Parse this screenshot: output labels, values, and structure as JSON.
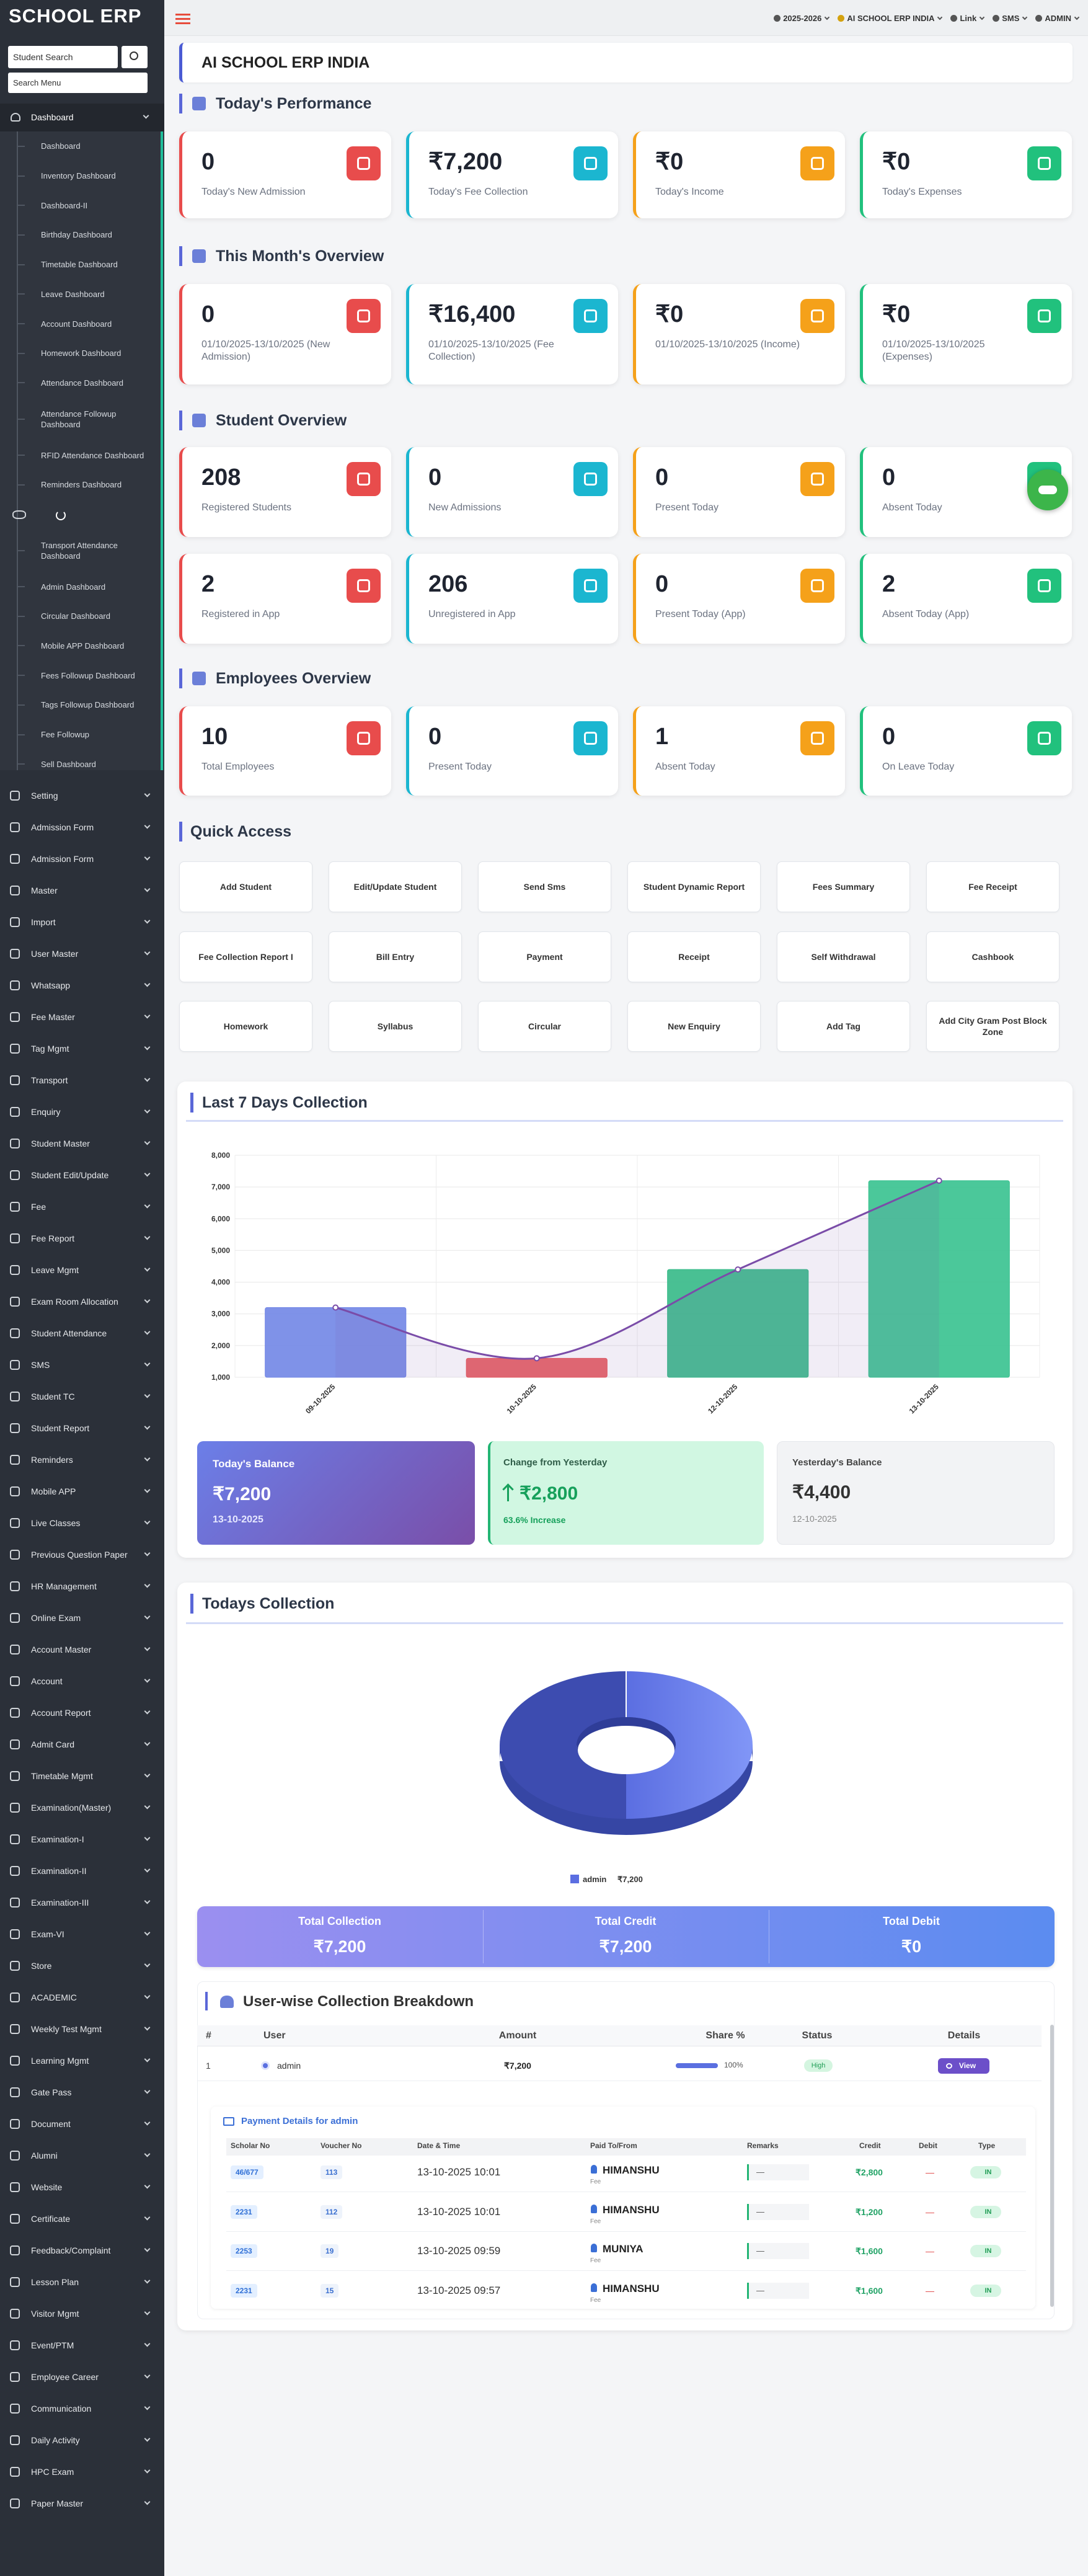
{
  "sidebar": {
    "logo": "SCHOOL ERP",
    "student_search": "Student Search",
    "search_menu": "Search Menu",
    "dashboard": "Dashboard",
    "dashboard_items": [
      "Dashboard",
      "Inventory Dashboard",
      "Dashboard-II",
      "Birthday Dashboard",
      "Timetable Dashboard",
      "Leave Dashboard",
      "Account Dashboard",
      "Homework Dashboard",
      "Attendance Dashboard",
      "Attendance Followup Dashboard",
      "RFID Attendance Dashboard",
      "Reminders Dashboard",
      "Transport Attendance Dashboard",
      "Admin Dashboard",
      "Circular Dashboard",
      "Mobile APP Dashboard",
      "Fees Followup Dashboard",
      "Tags Followup Dashboard",
      "Fee Followup",
      "Sell Dashboard"
    ],
    "menu": [
      "Setting",
      "Admission Form",
      "Admission Form",
      "Master",
      "Import",
      "User Master",
      "Whatsapp",
      "Fee Master",
      "Tag Mgmt",
      "Transport",
      "Enquiry",
      "Student Master",
      "Student Edit/Update",
      "Fee",
      "Fee Report",
      "Leave Mgmt",
      "Exam Room Allocation",
      "Student Attendance",
      "SMS",
      "Student TC",
      "Student Report",
      "Reminders",
      "Mobile APP",
      "Live Classes",
      "Previous Question Paper",
      "HR Management",
      "Online Exam",
      "Account Master",
      "Account",
      "Account Report",
      "Admit Card",
      "Timetable Mgmt",
      "Examination(Master)",
      "Examination-I",
      "Examination-II",
      "Examination-III",
      "Exam-VI",
      "Store",
      "ACADEMIC",
      "Weekly Test Mgmt",
      "Learning Mgmt",
      "Gate Pass",
      "Document",
      "Alumni",
      "Website",
      "Certificate",
      "Feedback/Complaint",
      "Lesson Plan",
      "Visitor Mgmt",
      "Event/PTM",
      "Employee Career",
      "Communication",
      "Daily Activity",
      "HPC Exam",
      "Paper Master"
    ]
  },
  "topbar": {
    "session": "2025-2026",
    "school": "AI SCHOOL ERP INDIA",
    "link": "Link",
    "sms": "SMS",
    "user": "ADMIN"
  },
  "header": {
    "title": "AI SCHOOL ERP INDIA"
  },
  "sections": [
    {
      "title": "Today's Performance",
      "cards": [
        {
          "value": "0",
          "label": "Today's New Admission"
        },
        {
          "value": "₹7,200",
          "label": "Today's Fee Collection"
        },
        {
          "value": "₹0",
          "label": "Today's Income"
        },
        {
          "value": "₹0",
          "label": "Today's Expenses"
        }
      ]
    },
    {
      "title": "This Month's Overview",
      "cards": [
        {
          "value": "0",
          "label": "01/10/2025-13/10/2025 (New Admission)"
        },
        {
          "value": "₹16,400",
          "label": "01/10/2025-13/10/2025 (Fee Collection)"
        },
        {
          "value": "₹0",
          "label": "01/10/2025-13/10/2025 (Income)"
        },
        {
          "value": "₹0",
          "label": "01/10/2025-13/10/2025 (Expenses)"
        }
      ]
    },
    {
      "title": "Student Overview",
      "cards": [
        {
          "value": "208",
          "label": "Registered Students"
        },
        {
          "value": "0",
          "label": "New Admissions"
        },
        {
          "value": "0",
          "label": "Present Today"
        },
        {
          "value": "0",
          "label": "Absent Today"
        },
        {
          "value": "2",
          "label": "Registered in App"
        },
        {
          "value": "206",
          "label": "Unregistered in App"
        },
        {
          "value": "0",
          "label": "Present Today (App)"
        },
        {
          "value": "2",
          "label": "Absent Today (App)"
        }
      ]
    },
    {
      "title": "Employees Overview",
      "cards": [
        {
          "value": "10",
          "label": "Total Employees"
        },
        {
          "value": "0",
          "label": "Present Today"
        },
        {
          "value": "1",
          "label": "Absent Today"
        },
        {
          "value": "0",
          "label": "On Leave Today"
        }
      ]
    }
  ],
  "quick_access": {
    "title": "Quick Access",
    "buttons": [
      "Add Student",
      "Edit/Update Student",
      "Send Sms",
      "Student Dynamic Report",
      "Fees Summary",
      "Fee Receipt",
      "Fee Collection Report I",
      "Bill Entry",
      "Payment",
      "Receipt",
      "Self Withdrawal",
      "Cashbook",
      "Homework",
      "Syllabus",
      "Circular",
      "New Enquiry",
      "Add Tag",
      "Add City Gram Post Block Zone"
    ]
  },
  "chart_data": [
    {
      "type": "bar",
      "title": "Last 7 Days Collection",
      "categories": [
        "09-10-2025",
        "10-10-2025",
        "12-10-2025",
        "13-10-2025"
      ],
      "values": [
        3200,
        1600,
        4400,
        7200
      ],
      "colors": [
        "#7186e6",
        "#e8595d",
        "#35b987",
        "#37c28f"
      ],
      "line_color": "#7a4ca8",
      "ylim": [
        1000,
        8000
      ],
      "yticks": [
        {
          "value": 1000,
          "label": "1,000"
        },
        {
          "value": 2000,
          "label": "2,000"
        },
        {
          "value": 3000,
          "label": "3,000"
        },
        {
          "value": 4000,
          "label": "4,000"
        },
        {
          "value": 5000,
          "label": "5,000"
        },
        {
          "value": 6000,
          "label": "6,000"
        },
        {
          "value": 7000,
          "label": "7,000"
        },
        {
          "value": 8000,
          "label": "8,000"
        }
      ],
      "grid": true
    },
    {
      "type": "pie",
      "title": "Todays Collection",
      "categories": [
        "admin"
      ],
      "values": [
        7200
      ],
      "value_labels": [
        "₹7,200"
      ],
      "colors": [
        "#5b6ee1"
      ]
    }
  ],
  "balance": {
    "today": {
      "label": "Today's Balance",
      "value": "₹7,200",
      "date": "13-10-2025"
    },
    "change": {
      "label": "Change from Yesterday",
      "value": "₹2,800",
      "note": "63.6% Increase"
    },
    "yesterday": {
      "label": "Yesterday's Balance",
      "value": "₹4,400",
      "date": "12-10-2025"
    }
  },
  "totals": [
    {
      "label": "Total Collection",
      "value": "₹7,200"
    },
    {
      "label": "Total Credit",
      "value": "₹7,200"
    },
    {
      "label": "Total Debit",
      "value": "₹0"
    }
  ],
  "breakdown": {
    "title": "User-wise Collection Breakdown",
    "headers": [
      "#",
      "User",
      "Amount",
      "Share %",
      "Status",
      "Details"
    ],
    "rows": [
      [
        "1",
        "admin",
        "₹7,200",
        "100%",
        "High",
        "View"
      ]
    ]
  },
  "payment": {
    "title": "Payment Details for admin",
    "headers": [
      "Scholar No",
      "Voucher No",
      "Date & Time",
      "Paid To/From",
      "Remarks",
      "Credit",
      "Debit",
      "Type"
    ],
    "rows": [
      {
        "scholar_no": "46/677",
        "voucher_no": "113",
        "datetime": "13-10-2025 10:01",
        "paid_to": "HIMANSHU",
        "paid_sub": "Fee",
        "remarks": "—",
        "credit": "₹2,800",
        "debit": "—",
        "type": "IN"
      },
      {
        "scholar_no": "2231",
        "voucher_no": "112",
        "datetime": "13-10-2025 10:01",
        "paid_to": "HIMANSHU",
        "paid_sub": "Fee",
        "remarks": "—",
        "credit": "₹1,200",
        "debit": "—",
        "type": "IN"
      },
      {
        "scholar_no": "2253",
        "voucher_no": "19",
        "datetime": "13-10-2025 09:59",
        "paid_to": "MUNIYA",
        "paid_sub": "Fee",
        "remarks": "—",
        "credit": "₹1,600",
        "debit": "—",
        "type": "IN"
      },
      {
        "scholar_no": "2231",
        "voucher_no": "15",
        "datetime": "13-10-2025 09:57",
        "paid_to": "HIMANSHU",
        "paid_sub": "Fee",
        "remarks": "—",
        "credit": "₹1,600",
        "debit": "—",
        "type": "IN"
      }
    ]
  }
}
